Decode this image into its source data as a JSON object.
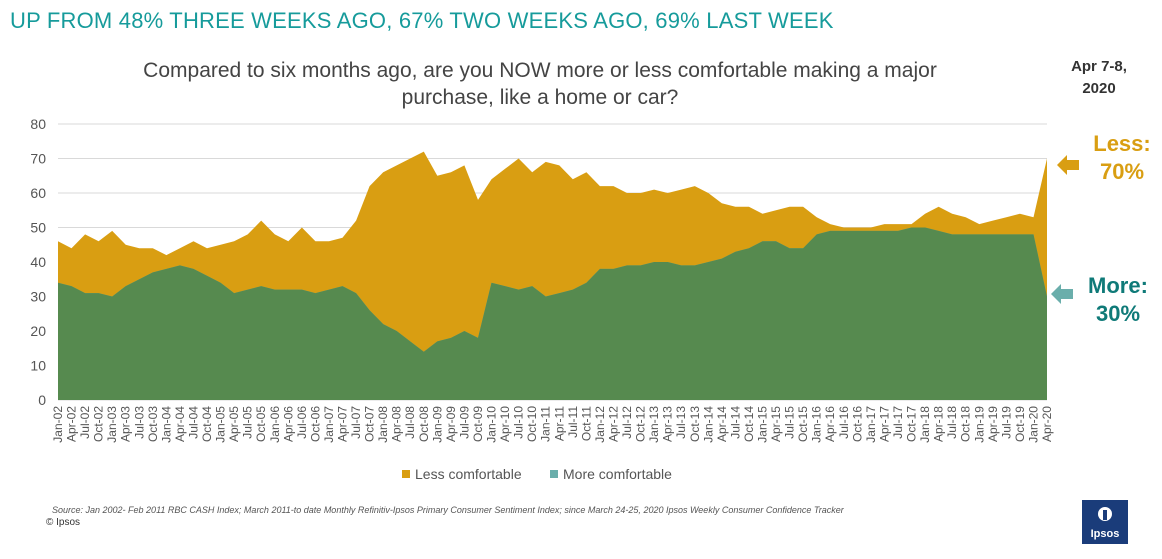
{
  "headline": "UP FROM 48% THREE WEEKS AGO, 67% TWO WEEKS AGO, 69% LAST WEEK",
  "question": "Compared to six months ago, are you NOW more or less comfortable making a major purchase, like a home or car?",
  "date_label": "Apr 7-8, 2020",
  "callouts": {
    "less": "Less: 70%",
    "more": "More: 30%"
  },
  "source": "Source: Jan 2002- Feb 2011 RBC CASH Index; March 2011-to date Monthly Refinitiv-Ipsos Primary Consumer Sentiment Index; since March 24-25, 2020 Ipsos Weekly Consumer Confidence Tracker",
  "copyright": "© Ipsos",
  "logo_text": "Ipsos",
  "colors": {
    "less": "#d99e12",
    "more_overlap": "#6aaeab",
    "green": "#568a4f",
    "headline": "#169b9b",
    "logo": "#1a3c7a"
  },
  "chart_data": {
    "type": "area",
    "title": "Compared to six months ago, are you NOW more or less comfortable making a major purchase, like a home or car?",
    "ylim": [
      0,
      80
    ],
    "yticks": [
      0,
      10,
      20,
      30,
      40,
      50,
      60,
      70,
      80
    ],
    "grid": true,
    "legend_position": "bottom",
    "x": [
      "Jan-02",
      "Apr-02",
      "Jul-02",
      "Oct-02",
      "Jan-03",
      "Apr-03",
      "Jul-03",
      "Oct-03",
      "Jan-04",
      "Apr-04",
      "Jul-04",
      "Oct-04",
      "Jan-05",
      "Apr-05",
      "Jul-05",
      "Oct-05",
      "Jan-06",
      "Apr-06",
      "Jul-06",
      "Oct-06",
      "Jan-07",
      "Apr-07",
      "Jul-07",
      "Oct-07",
      "Jan-08",
      "Apr-08",
      "Jul-08",
      "Oct-08",
      "Jan-09",
      "Apr-09",
      "Jul-09",
      "Oct-09",
      "Jan-10",
      "Apr-10",
      "Jul-10",
      "Oct-10",
      "Jan-11",
      "Apr-11",
      "Jul-11",
      "Oct-11",
      "Jan-12",
      "Apr-12",
      "Jul-12",
      "Oct-12",
      "Jan-13",
      "Apr-13",
      "Jul-13",
      "Oct-13",
      "Jan-14",
      "Apr-14",
      "Jul-14",
      "Oct-14",
      "Jan-15",
      "Apr-15",
      "Jul-15",
      "Oct-15",
      "Jan-16",
      "Apr-16",
      "Jul-16",
      "Oct-16",
      "Jan-17",
      "Apr-17",
      "Jul-17",
      "Oct-17",
      "Jan-18",
      "Apr-18",
      "Jul-18",
      "Oct-18",
      "Jan-19",
      "Apr-19",
      "Jul-19",
      "Oct-19",
      "Jan-20",
      "Apr-20"
    ],
    "series": [
      {
        "name": "Less comfortable",
        "values": [
          46,
          44,
          48,
          46,
          49,
          45,
          44,
          44,
          42,
          44,
          46,
          44,
          45,
          46,
          48,
          52,
          48,
          46,
          50,
          46,
          46,
          47,
          52,
          62,
          66,
          68,
          70,
          72,
          65,
          66,
          68,
          58,
          64,
          67,
          70,
          66,
          69,
          68,
          64,
          66,
          62,
          62,
          60,
          60,
          61,
          60,
          61,
          62,
          60,
          57,
          56,
          56,
          54,
          55,
          56,
          56,
          53,
          51,
          50,
          50,
          50,
          51,
          51,
          51,
          54,
          56,
          54,
          53,
          51,
          52,
          53,
          54,
          53,
          70
        ]
      },
      {
        "name": "More comfortable",
        "values": [
          34,
          33,
          31,
          31,
          30,
          33,
          35,
          37,
          38,
          39,
          38,
          36,
          34,
          31,
          32,
          33,
          32,
          32,
          32,
          31,
          32,
          33,
          31,
          26,
          22,
          20,
          17,
          14,
          17,
          18,
          20,
          18,
          34,
          33,
          32,
          33,
          30,
          31,
          32,
          34,
          38,
          38,
          39,
          39,
          40,
          40,
          39,
          39,
          40,
          41,
          43,
          44,
          46,
          46,
          44,
          44,
          48,
          49,
          49,
          49,
          49,
          49,
          49,
          50,
          50,
          49,
          48,
          48,
          48,
          48,
          48,
          48,
          48,
          30
        ]
      }
    ]
  }
}
